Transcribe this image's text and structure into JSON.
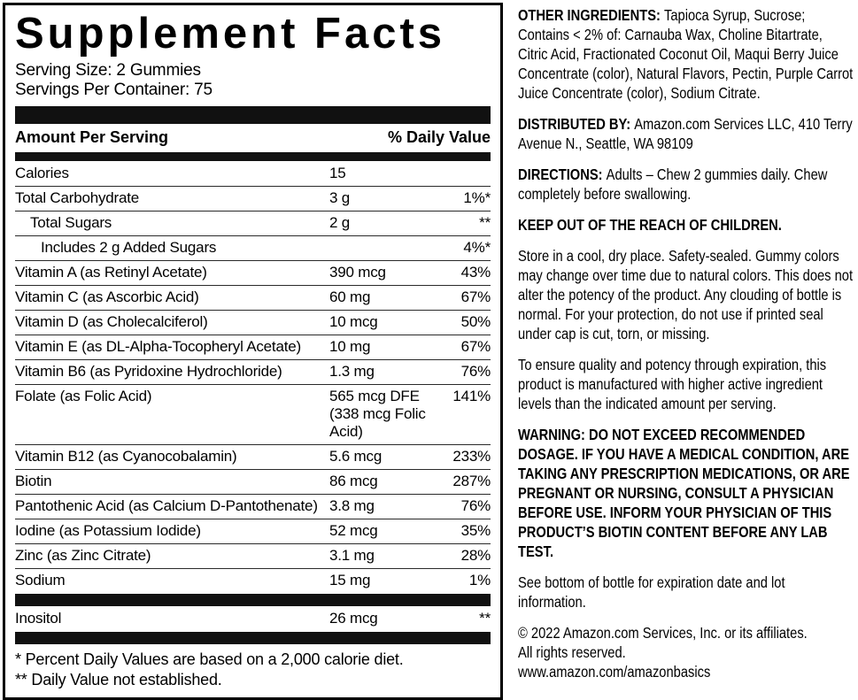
{
  "facts": {
    "title": "Supplement Facts",
    "serving_size": "Serving Size: 2 Gummies",
    "servings_per_container": "Servings Per Container: 75",
    "columns": {
      "amount": "Amount Per Serving",
      "dv": "% Daily Value"
    },
    "rows": [
      {
        "name": "Calories",
        "amount": "15",
        "dv": ""
      },
      {
        "name": "Total Carbohydrate",
        "amount": "3 g",
        "dv": "1%*"
      },
      {
        "name": "Total Sugars",
        "amount": "2 g",
        "dv": "**"
      },
      {
        "name": "Includes 2 g Added Sugars",
        "amount": "",
        "dv": "4%*"
      },
      {
        "name": "Vitamin A (as Retinyl Acetate)",
        "amount": "390 mcg",
        "dv": "43%"
      },
      {
        "name": "Vitamin C (as Ascorbic Acid)",
        "amount": "60 mg",
        "dv": "67%"
      },
      {
        "name": "Vitamin D (as Cholecalciferol)",
        "amount": "10 mcg",
        "dv": "50%"
      },
      {
        "name": "Vitamin E (as DL-Alpha-Tocopheryl Acetate)",
        "amount": "10 mg",
        "dv": "67%"
      },
      {
        "name": "Vitamin B6 (as Pyridoxine Hydrochloride)",
        "amount": "1.3 mg",
        "dv": "76%"
      },
      {
        "name": "Folate (as Folic Acid)",
        "amount": "565 mcg DFE",
        "amount2": "(338 mcg Folic Acid)",
        "dv": "141%"
      },
      {
        "name": "Vitamin B12 (as Cyanocobalamin)",
        "amount": "5.6 mcg",
        "dv": "233%"
      },
      {
        "name": "Biotin",
        "amount": "86 mcg",
        "dv": "287%"
      },
      {
        "name": "Pantothenic Acid (as Calcium D-Pantothenate)",
        "amount": "3.8 mg",
        "dv": "76%"
      },
      {
        "name": "Iodine (as Potassium Iodide)",
        "amount": "52 mcg",
        "dv": "35%"
      },
      {
        "name": "Zinc (as Zinc Citrate)",
        "amount": "3.1 mg",
        "dv": "28%"
      },
      {
        "name": "Sodium",
        "amount": "15 mg",
        "dv": "1%"
      },
      {
        "name": "Inositol",
        "amount": "26 mcg",
        "dv": "**"
      }
    ],
    "footnotes": [
      "* Percent Daily Values are based on a 2,000 calorie diet.",
      "** Daily Value not established."
    ]
  },
  "info": {
    "sections": [
      {
        "label": "OTHER INGREDIENTS:",
        "text": "Tapioca Syrup, Sucrose; Contains < 2% of: Carnauba Wax, Choline Bitartrate, Citric Acid, Fractionated Coconut Oil, Maqui Berry Juice Concentrate (color), Natural Flavors, Pectin, Purple Carrot Juice Concentrate (color), Sodium Citrate."
      },
      {
        "label": "DISTRIBUTED BY:",
        "text": "Amazon.com Services LLC, 410 Terry Avenue N., Seattle, WA 98109"
      },
      {
        "label": "DIRECTIONS:",
        "text": "Adults – Chew 2 gummies daily. Chew completely before swallowing."
      },
      {
        "label": "KEEP OUT OF THE REACH OF CHILDREN.",
        "text": ""
      },
      {
        "label": "",
        "text": "Store in a cool, dry place. Safety-sealed. Gummy colors may change over time due to natural colors. This does not alter the potency of the product. Any clouding of bottle is normal. For your protection, do not use if printed seal under cap is cut, torn, or missing."
      },
      {
        "label": "",
        "text": "To ensure quality and potency through expiration, this product is manufactured with higher active ingredient levels than the indicated amount per serving."
      },
      {
        "label": "WARNING:",
        "text": "DO NOT EXCEED RECOMMENDED DOSAGE. IF YOU HAVE A MEDICAL CONDITION, ARE TAKING ANY PRESCRIPTION MEDICATIONS, OR ARE PREGNANT OR NURSING, CONSULT A PHYSICIAN BEFORE USE. INFORM YOUR PHYSICIAN OF THIS PRODUCT’S BIOTIN CONTENT BEFORE ANY LAB TEST."
      },
      {
        "label": "",
        "text": "See bottom of bottle for expiration date and lot information."
      }
    ],
    "footer_lines": [
      "© 2022 Amazon.com Services, Inc. or its affiliates.",
      "All rights reserved.",
      "www.amazon.com/amazonbasics"
    ]
  },
  "colors": {
    "ink": "#000000",
    "bar": "#111111",
    "background": "#ffffff"
  }
}
